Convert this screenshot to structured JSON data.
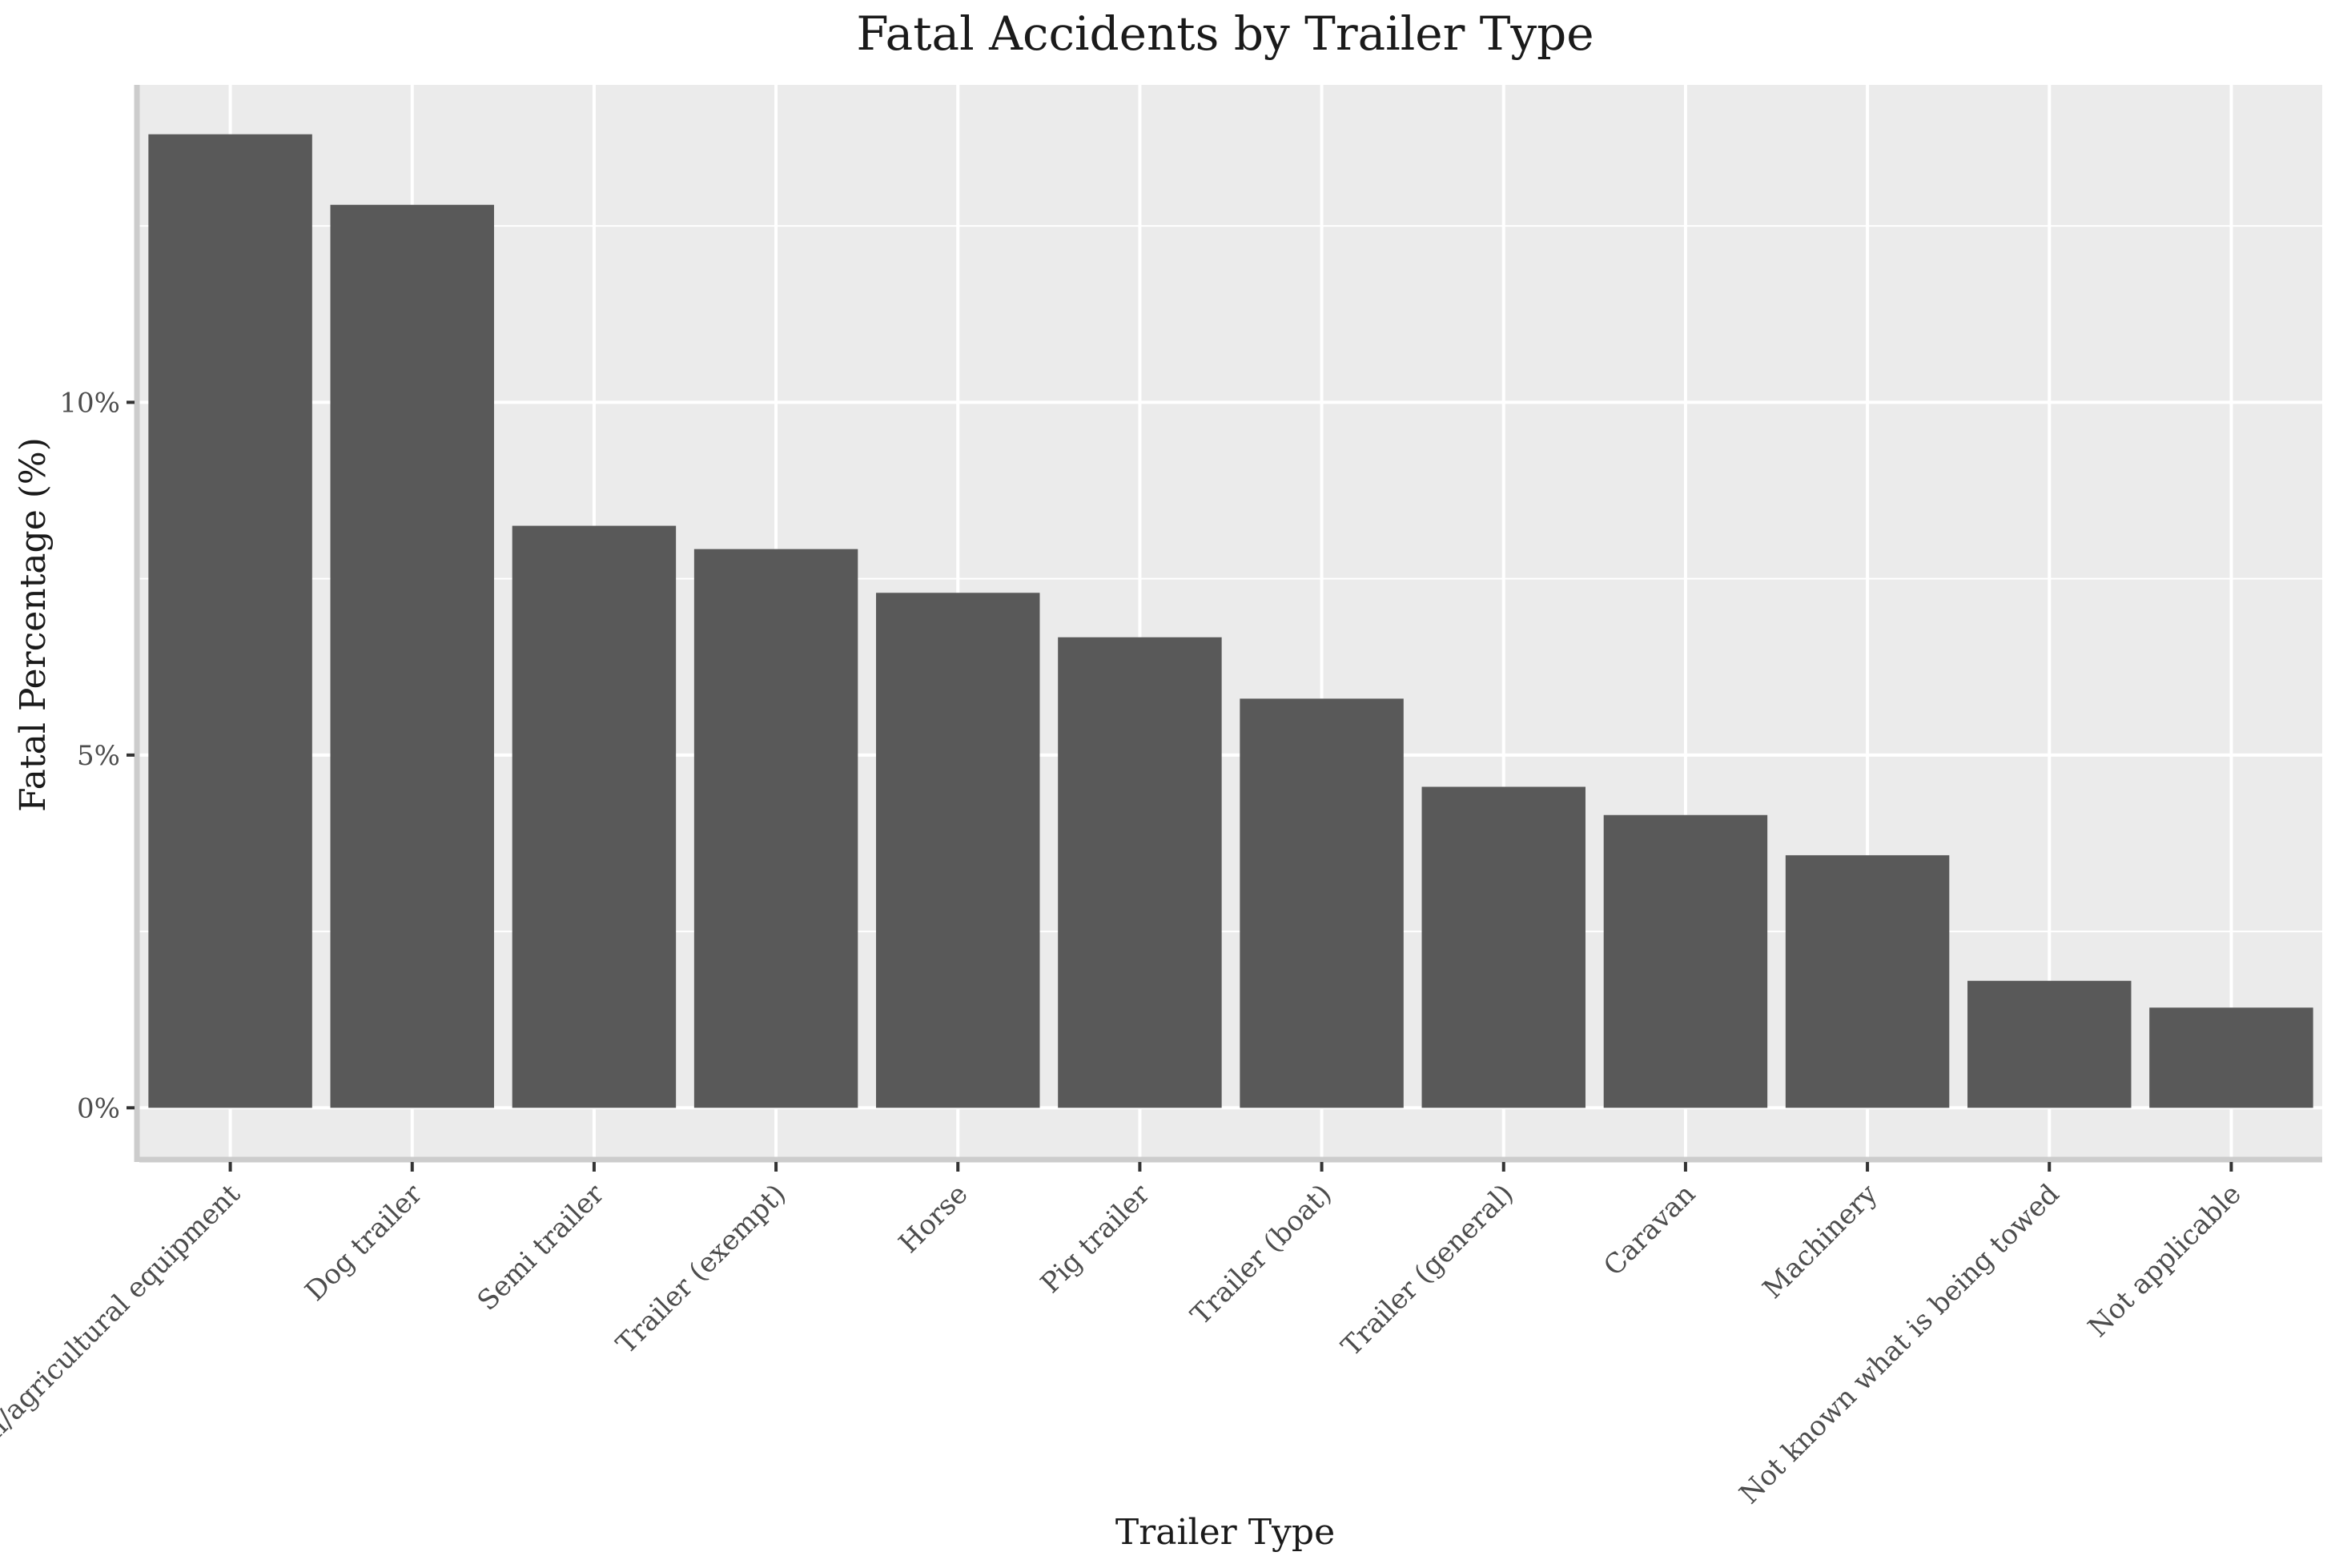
{
  "chart_data": {
    "type": "bar",
    "title": "Fatal Accidents by Trailer Type",
    "xlabel": "Trailer Type",
    "ylabel": "Fatal Percentage (%)",
    "categories": [
      "Farm/agricultural equipment",
      "Dog trailer",
      "Semi trailer",
      "Trailer (exempt)",
      "Horse",
      "Pig trailer",
      "Trailer (boat)",
      "Trailer (general)",
      "Caravan",
      "Machinery",
      "Not known what is being towed",
      "Not applicable"
    ],
    "values": [
      13.8,
      12.8,
      8.25,
      7.92,
      7.3,
      6.67,
      5.8,
      4.55,
      4.15,
      3.58,
      1.8,
      1.42
    ],
    "ylim": [
      -0.7,
      14.5
    ],
    "yticks": [
      0,
      5,
      10
    ],
    "ytick_labels": [
      "0%",
      "5%",
      "10%"
    ],
    "grid": true,
    "legend": "none",
    "colors": {
      "bar": "#595959",
      "panel": "#ebebeb",
      "grid": "#ffffff",
      "axis_line": "#cccccc"
    }
  }
}
